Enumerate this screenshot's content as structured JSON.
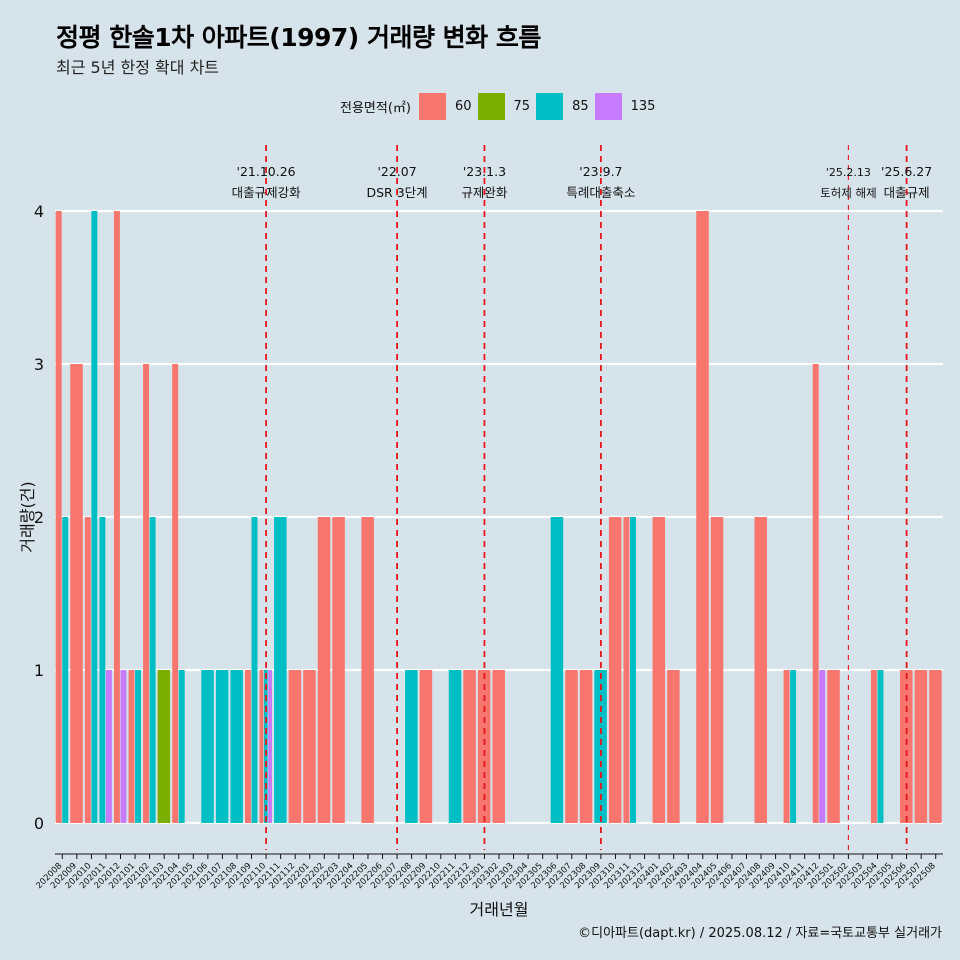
{
  "title": "정평 한솔1차 아파트(1997) 거래량 변화 흐름",
  "subtitle": "최근 5년 한정 확대 차트",
  "caption": "©디아파트(dapt.kr) / 2025.08.12 / 자료=국토교통부 실거래가",
  "legend": {
    "title": "전용면적(㎡)",
    "items": [
      {
        "label": "60",
        "color": "#f8766d"
      },
      {
        "label": "75",
        "color": "#7cae00"
      },
      {
        "label": "85",
        "color": "#00bfc4"
      },
      {
        "label": "135",
        "color": "#c77cff"
      }
    ]
  },
  "chart_data": {
    "type": "bar",
    "xlabel": "거래년월",
    "ylabel": "거래량(건)",
    "ylim": [
      0,
      4
    ],
    "yticks": [
      0,
      1,
      2,
      3,
      4
    ],
    "grid": true,
    "categories": [
      "202008",
      "202009",
      "202010",
      "202011",
      "202012",
      "202101",
      "202102",
      "202103",
      "202104",
      "202105",
      "202106",
      "202107",
      "202108",
      "202109",
      "202110",
      "202111",
      "202112",
      "202201",
      "202202",
      "202203",
      "202204",
      "202205",
      "202206",
      "202207",
      "202208",
      "202209",
      "202210",
      "202211",
      "202212",
      "202301",
      "202302",
      "202303",
      "202304",
      "202305",
      "202306",
      "202307",
      "202308",
      "202309",
      "202310",
      "202311",
      "202312",
      "202401",
      "202402",
      "202403",
      "202404",
      "202405",
      "202406",
      "202407",
      "202408",
      "202409",
      "202410",
      "202411",
      "202412",
      "202501",
      "202502",
      "202503",
      "202504",
      "202505",
      "202506",
      "202507",
      "202508"
    ],
    "series": [
      {
        "name": "60",
        "color": "#f8766d",
        "values": [
          4,
          3,
          2,
          0,
          4,
          1,
          3,
          0,
          3,
          0,
          0,
          0,
          0,
          1,
          1,
          0,
          1,
          1,
          2,
          2,
          0,
          2,
          0,
          0,
          0,
          1,
          0,
          0,
          1,
          1,
          1,
          0,
          0,
          0,
          0,
          1,
          1,
          0,
          2,
          2,
          0,
          2,
          1,
          0,
          4,
          2,
          0,
          0,
          2,
          0,
          1,
          0,
          3,
          1,
          0,
          0,
          1,
          0,
          1,
          1,
          1
        ]
      },
      {
        "name": "75",
        "color": "#7cae00",
        "values": [
          0,
          0,
          0,
          0,
          0,
          0,
          0,
          1,
          0,
          0,
          0,
          0,
          0,
          0,
          0,
          0,
          0,
          0,
          0,
          0,
          0,
          0,
          0,
          0,
          0,
          0,
          0,
          0,
          0,
          0,
          0,
          0,
          0,
          0,
          0,
          0,
          0,
          0,
          0,
          0,
          0,
          0,
          0,
          0,
          0,
          0,
          0,
          0,
          0,
          0,
          0,
          0,
          0,
          0,
          0,
          0,
          0,
          0,
          0,
          0,
          0
        ]
      },
      {
        "name": "85",
        "color": "#00bfc4",
        "values": [
          2,
          0,
          4,
          2,
          0,
          1,
          2,
          0,
          1,
          0,
          1,
          1,
          1,
          2,
          1,
          2,
          0,
          0,
          0,
          0,
          0,
          0,
          0,
          0,
          1,
          0,
          0,
          1,
          0,
          0,
          0,
          0,
          0,
          0,
          2,
          0,
          0,
          1,
          0,
          2,
          0,
          0,
          0,
          0,
          0,
          0,
          0,
          0,
          0,
          0,
          1,
          0,
          0,
          0,
          0,
          0,
          1,
          0,
          0,
          0,
          0
        ]
      },
      {
        "name": "135",
        "color": "#c77cff",
        "values": [
          0,
          0,
          0,
          1,
          1,
          0,
          0,
          0,
          0,
          0,
          0,
          0,
          0,
          0,
          1,
          0,
          0,
          0,
          0,
          0,
          0,
          0,
          0,
          0,
          0,
          0,
          0,
          0,
          0,
          0,
          0,
          0,
          0,
          0,
          0,
          0,
          0,
          0,
          0,
          0,
          0,
          0,
          0,
          0,
          0,
          0,
          0,
          0,
          0,
          0,
          0,
          0,
          1,
          0,
          0,
          0,
          0,
          0,
          0,
          0,
          0
        ]
      }
    ],
    "annotations": [
      {
        "date": "'21.10.26",
        "label": "대출규제강화",
        "x": "202110",
        "style": "thick"
      },
      {
        "date": "'22.07",
        "label": "DSR 3단계",
        "x": "202207",
        "style": "thick"
      },
      {
        "date": "'23.1.3",
        "label": "규제완화",
        "x": "202301",
        "style": "thick"
      },
      {
        "date": "'23.9.7",
        "label": "특례대출축소",
        "x": "202309",
        "style": "thick"
      },
      {
        "date": "'25.2.13",
        "label": "토허제 해제",
        "x": "202502",
        "style": "thin"
      },
      {
        "date": "'25.6.27",
        "label": "대출규제",
        "x": "202506",
        "style": "thick"
      }
    ]
  }
}
